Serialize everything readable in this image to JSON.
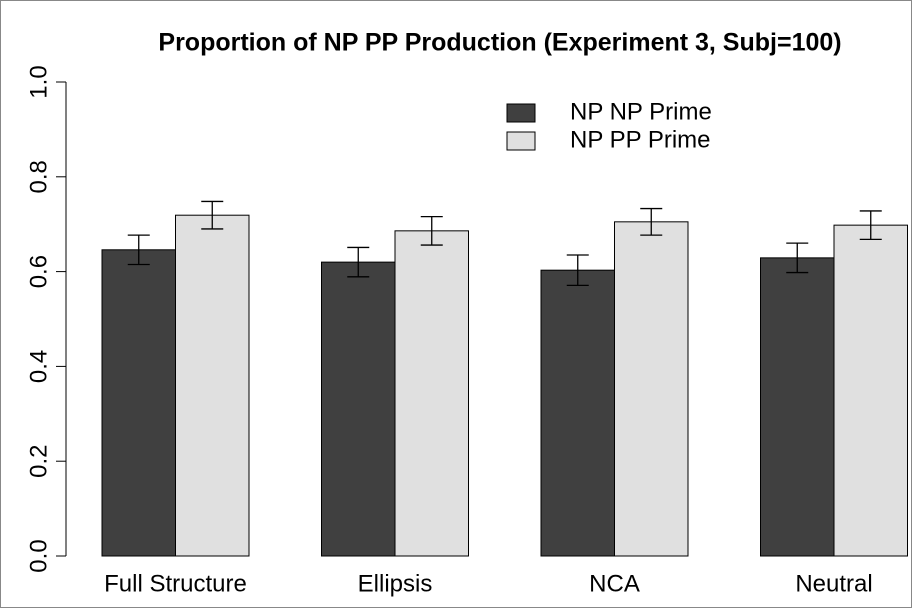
{
  "chart_data": {
    "type": "bar",
    "title": "Proportion of NP PP Production (Experiment 3, Subj=100)",
    "categories": [
      "Full Structure",
      "Ellipsis",
      "NCA",
      "Neutral"
    ],
    "series": [
      {
        "name": "NP NP Prime",
        "color": "#404040",
        "values": [
          0.646,
          0.62,
          0.603,
          0.629
        ],
        "errors": [
          0.031,
          0.031,
          0.032,
          0.031
        ]
      },
      {
        "name": "NP PP Prime",
        "color": "#e0e0e0",
        "values": [
          0.719,
          0.686,
          0.705,
          0.698
        ],
        "errors": [
          0.029,
          0.03,
          0.028,
          0.03
        ]
      }
    ],
    "ylim": [
      0,
      1
    ],
    "yticks": [
      {
        "value": 0,
        "label": "0.0"
      },
      0.2,
      0.4,
      0.6,
      0.8,
      {
        "value": 1,
        "label": "1.0"
      }
    ],
    "legend": "top-right"
  }
}
